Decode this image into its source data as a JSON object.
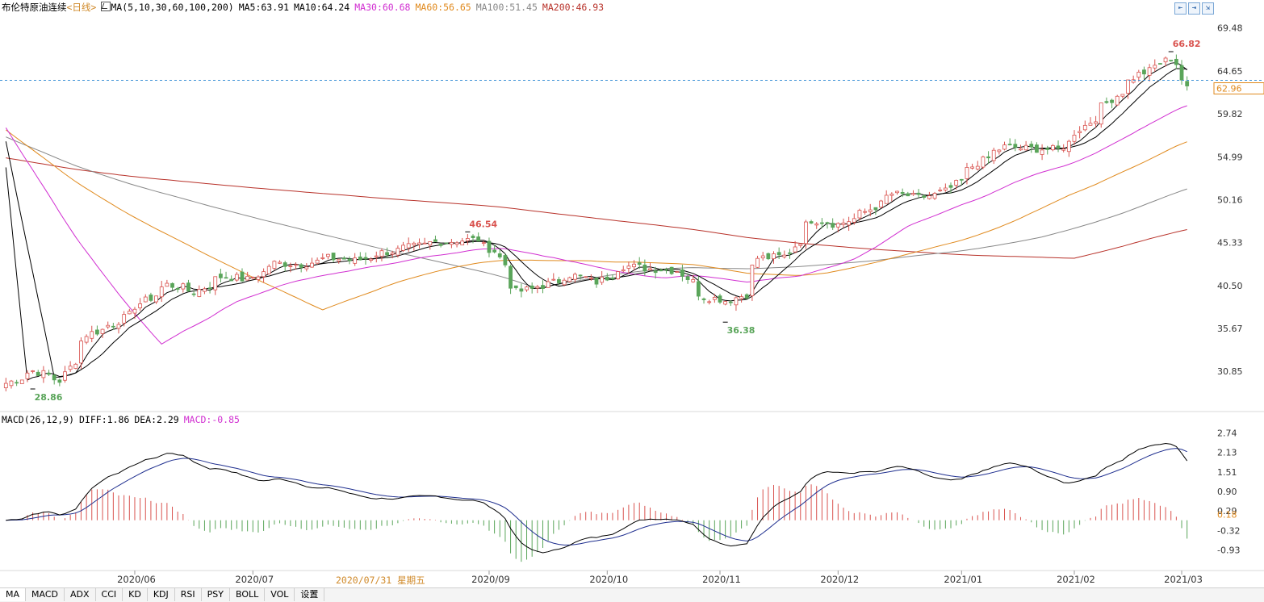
{
  "header": {
    "instrument": "布伦特原油连续",
    "period": "<日线>",
    "ma_params": "MA(5,10,30,60,100,200)",
    "ma5": "MA5:63.91",
    "ma10": "MA10:64.24",
    "ma30": "MA30:60.68",
    "ma60": "MA60:56.65",
    "ma100": "MA100:51.45",
    "ma200": "MA200:46.93"
  },
  "macd_header": {
    "params": "MACD(26,12,9)",
    "diff": "DIFF:1.86",
    "dea": "DEA:2.29",
    "macd": "MACD:-0.85"
  },
  "crosshair_date": "2020/07/31 星期五",
  "tabs": [
    "MA",
    "MACD",
    "ADX",
    "CCI",
    "KD",
    "KDJ",
    "RSI",
    "PSY",
    "BOLL",
    "VOL",
    "设置"
  ],
  "buttons": [
    "⇤",
    "⇥",
    "⇲"
  ],
  "colors": {
    "up": "#d9534f",
    "down": "#5aa55a",
    "ma5": "#000000",
    "ma10": "#000000",
    "ma30": "#d12fd1",
    "ma60": "#e08a1e",
    "ma100": "#888888",
    "ma200": "#b8322a",
    "diff": "#000000",
    "dea": "#1f2f8f",
    "price_line": "#3a8fd6"
  },
  "chart_data": [
    {
      "type": "candlestick",
      "title": "布伦特原油连续",
      "x_ticks": [
        "2020/06",
        "2020/07",
        "2020/09",
        "2020/10",
        "2020/11",
        "2020/12",
        "2021/01",
        "2021/02",
        "2021/03"
      ],
      "y_ticks": [
        69.48,
        64.65,
        59.82,
        54.99,
        50.16,
        45.33,
        40.5,
        35.67,
        30.85
      ],
      "ylim": [
        26.5,
        71.0
      ],
      "last_price": "62.96",
      "annotations": [
        {
          "label": "66.82",
          "date": "2021/02/25",
          "value": 66.82
        },
        {
          "label": "46.54",
          "date": "2020/08/26",
          "value": 46.54
        },
        {
          "label": "36.38",
          "date": "2020/11/02",
          "value": 36.38
        },
        {
          "label": "28.86",
          "date": "2020/05/05",
          "value": 28.86
        }
      ],
      "close_anchors": [
        [
          "2020/04/28",
          29.5
        ],
        [
          "2020/05/05",
          30.9
        ],
        [
          "2020/05/12",
          29.8
        ],
        [
          "2020/05/19",
          35.0
        ],
        [
          "2020/05/26",
          36.2
        ],
        [
          "2020/06/02",
          38.5
        ],
        [
          "2020/06/09",
          40.6
        ],
        [
          "2020/06/16",
          39.8
        ],
        [
          "2020/06/23",
          41.5
        ],
        [
          "2020/06/30",
          41.2
        ],
        [
          "2020/07/07",
          43.0
        ],
        [
          "2020/07/14",
          42.9
        ],
        [
          "2020/07/21",
          43.6
        ],
        [
          "2020/07/28",
          43.3
        ],
        [
          "2020/08/04",
          44.2
        ],
        [
          "2020/08/11",
          44.8
        ],
        [
          "2020/08/18",
          45.4
        ],
        [
          "2020/08/25",
          45.6
        ],
        [
          "2020/08/28",
          45.7
        ],
        [
          "2020/09/02",
          44.4
        ],
        [
          "2020/09/08",
          39.8
        ],
        [
          "2020/09/15",
          40.5
        ],
        [
          "2020/09/22",
          41.7
        ],
        [
          "2020/09/29",
          40.9
        ],
        [
          "2020/10/06",
          42.7
        ],
        [
          "2020/10/13",
          42.4
        ],
        [
          "2020/10/20",
          42.2
        ],
        [
          "2020/10/27",
          39.2
        ],
        [
          "2020/11/02",
          38.8
        ],
        [
          "2020/11/06",
          39.5
        ],
        [
          "2020/11/10",
          43.6
        ],
        [
          "2020/11/17",
          43.8
        ],
        [
          "2020/11/24",
          47.9
        ],
        [
          "2020/12/01",
          47.4
        ],
        [
          "2020/12/08",
          48.8
        ],
        [
          "2020/12/15",
          50.8
        ],
        [
          "2020/12/22",
          50.4
        ],
        [
          "2020/12/29",
          51.1
        ],
        [
          "2021/01/06",
          54.3
        ],
        [
          "2021/01/13",
          56.1
        ],
        [
          "2021/01/20",
          55.9
        ],
        [
          "2021/01/27",
          55.8
        ],
        [
          "2021/02/03",
          58.5
        ],
        [
          "2021/02/10",
          61.5
        ],
        [
          "2021/02/17",
          64.3
        ],
        [
          "2021/02/22",
          65.2
        ],
        [
          "2021/02/25",
          66.1
        ],
        [
          "2021/03/01",
          63.7
        ],
        [
          "2021/03/02",
          62.96
        ]
      ],
      "moving_averages": {
        "MA30_last": 60.68,
        "MA60_last": 56.65,
        "MA100_last": 51.45,
        "MA200_last": 46.93
      }
    },
    {
      "type": "macd",
      "title": "MACD(26,12,9)",
      "y_ticks": [
        2.74,
        2.13,
        1.51,
        0.9,
        0.29,
        -0.32,
        -0.93
      ],
      "marked_value": "0.18",
      "ylim": [
        -1.55,
        3.0
      ],
      "diff_last": 1.86,
      "dea_last": 2.29,
      "macd_last": -0.85
    }
  ]
}
